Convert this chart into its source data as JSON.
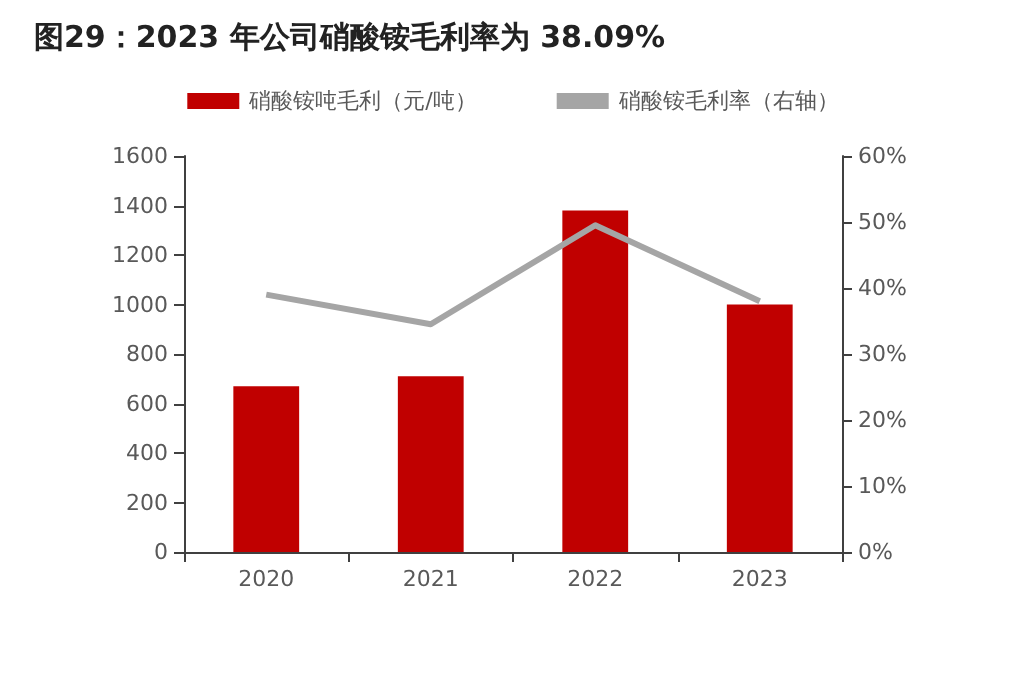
{
  "chart_data": {
    "type": "bar",
    "title": "图29：2023 年公司硝酸铵毛利率为 38.09%",
    "categories": [
      "2020",
      "2021",
      "2022",
      "2023"
    ],
    "series": [
      {
        "name": "硝酸铵吨毛利（元/吨）",
        "color": "#c00000",
        "values": [
          670,
          710,
          1380,
          1000
        ]
      },
      {
        "name": "硝酸铵毛利率（右轴）",
        "type": "line",
        "axis": "y2",
        "color": "#a5a5a5",
        "values": [
          39,
          34.5,
          49.5,
          38
        ]
      }
    ],
    "ylim": [
      0,
      1600
    ],
    "yticks": [
      0,
      200,
      400,
      600,
      800,
      1000,
      1200,
      1400,
      1600
    ],
    "y2lim": [
      0,
      60
    ],
    "y2ticks": [
      {
        "value": 0,
        "label": "0%"
      },
      {
        "value": 10,
        "label": "10%"
      },
      {
        "value": 20,
        "label": "20%"
      },
      {
        "value": 30,
        "label": "30%"
      },
      {
        "value": 40,
        "label": "40%"
      },
      {
        "value": 50,
        "label": "50%"
      },
      {
        "value": 60,
        "label": "60%"
      }
    ],
    "legend": "top",
    "grid": false,
    "marker": "none"
  }
}
